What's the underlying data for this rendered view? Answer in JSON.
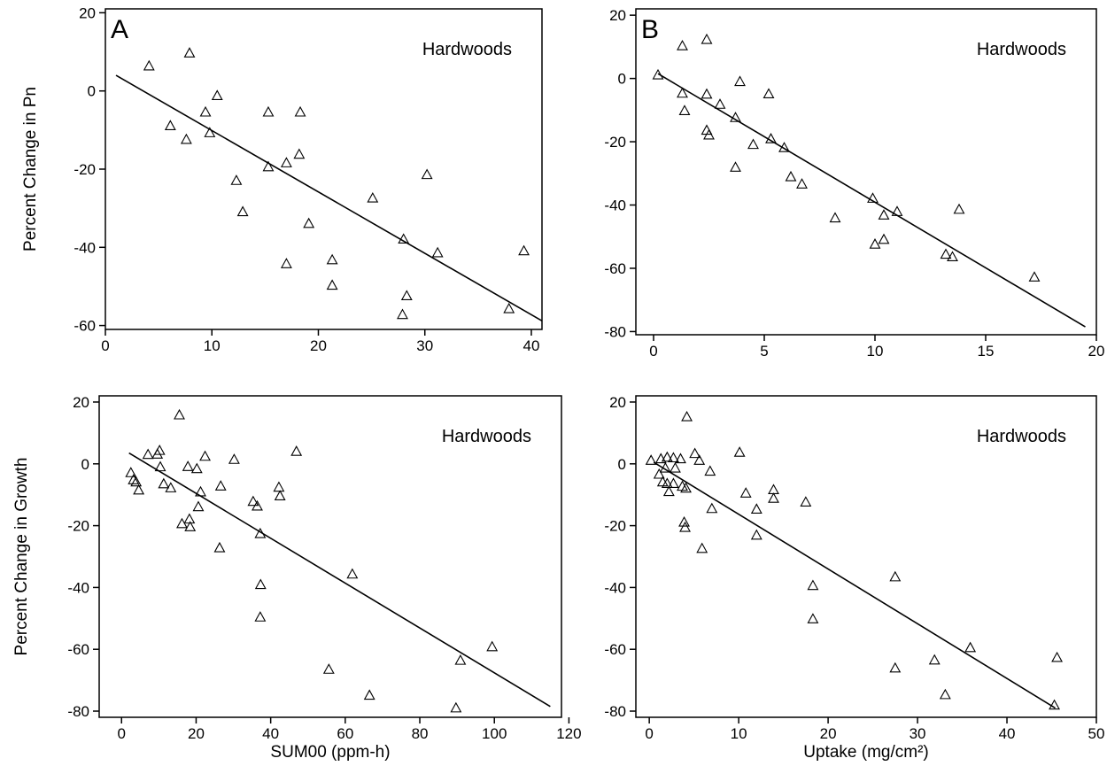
{
  "chart_data": [
    {
      "type": "scatter",
      "panel_label": "A",
      "annotation": "Hardwoods",
      "xlabel": "",
      "ylabel": "Percent Change in Pn",
      "xlim": [
        0,
        41
      ],
      "ylim": [
        -61,
        21
      ],
      "xticks": [
        0,
        10,
        20,
        30,
        40
      ],
      "yticks": [
        20,
        0,
        -20,
        -40,
        -60
      ],
      "marker": "triangle",
      "grid": false,
      "points": [
        [
          4.1,
          6.3
        ],
        [
          7.9,
          9.6
        ],
        [
          6.1,
          -9
        ],
        [
          7.6,
          -12.5
        ],
        [
          9.4,
          -5.5
        ],
        [
          10.5,
          -1.3
        ],
        [
          9.8,
          -10.8
        ],
        [
          12.3,
          -23
        ],
        [
          12.9,
          -31
        ],
        [
          15.3,
          -5.5
        ],
        [
          15.3,
          -19.5
        ],
        [
          17.0,
          -18.5
        ],
        [
          18.3,
          -5.5
        ],
        [
          18.2,
          -16.3
        ],
        [
          19.1,
          -34
        ],
        [
          17.0,
          -44.3
        ],
        [
          21.3,
          -43.3
        ],
        [
          21.3,
          -49.8
        ],
        [
          25.1,
          -27.5
        ],
        [
          28.0,
          -38
        ],
        [
          28.3,
          -52.5
        ],
        [
          27.9,
          -57.3
        ],
        [
          30.2,
          -21.5
        ],
        [
          31.2,
          -41.5
        ],
        [
          37.9,
          -55.8
        ],
        [
          39.3,
          -41
        ]
      ],
      "fit_line": [
        [
          1,
          4
        ],
        [
          41,
          -58.8
        ]
      ]
    },
    {
      "type": "scatter",
      "panel_label": "B",
      "annotation": "Hardwoods",
      "xlabel": "",
      "ylabel": "",
      "xlim": [
        -0.8,
        20
      ],
      "ylim": [
        -81,
        22
      ],
      "xticks": [
        0,
        5,
        10,
        15,
        20
      ],
      "yticks": [
        20,
        0,
        -20,
        -40,
        -60,
        -80
      ],
      "marker": "triangle",
      "grid": false,
      "points": [
        [
          0.2,
          1
        ],
        [
          1.3,
          10.2
        ],
        [
          2.4,
          12.2
        ],
        [
          1.3,
          -4.8
        ],
        [
          1.4,
          -10.3
        ],
        [
          2.4,
          -5.1
        ],
        [
          2.4,
          -16.5
        ],
        [
          2.5,
          -18
        ],
        [
          3.0,
          -8.3
        ],
        [
          3.7,
          -12.5
        ],
        [
          3.9,
          -1.1
        ],
        [
          3.7,
          -28.2
        ],
        [
          4.5,
          -21
        ],
        [
          5.2,
          -5
        ],
        [
          5.3,
          -19.2
        ],
        [
          5.9,
          -22
        ],
        [
          6.2,
          -31.2
        ],
        [
          6.7,
          -33.5
        ],
        [
          8.2,
          -44.2
        ],
        [
          9.9,
          -38
        ],
        [
          10.0,
          -52.5
        ],
        [
          10.4,
          -43.3
        ],
        [
          10.4,
          -51
        ],
        [
          11.0,
          -42.2
        ],
        [
          13.2,
          -55.7
        ],
        [
          13.5,
          -56.5
        ],
        [
          13.8,
          -41.5
        ],
        [
          17.2,
          -62.9
        ]
      ],
      "fit_line": [
        [
          0.2,
          1.5
        ],
        [
          19.5,
          -78.5
        ]
      ]
    },
    {
      "type": "scatter",
      "panel_label": "",
      "annotation": "Hardwoods",
      "xlabel": "SUM00 (ppm-h)",
      "ylabel": "Percent Change in Growth",
      "xlim": [
        -6,
        118
      ],
      "ylim": [
        -82,
        22
      ],
      "xticks": [
        0,
        20,
        40,
        60,
        80,
        100,
        120
      ],
      "yticks": [
        20,
        0,
        -20,
        -40,
        -60,
        -80
      ],
      "marker": "triangle",
      "grid": false,
      "points": [
        [
          2.5,
          -3
        ],
        [
          3.2,
          -5.3
        ],
        [
          3.9,
          -6
        ],
        [
          4.6,
          -8.6
        ],
        [
          7.1,
          2.9
        ],
        [
          9.6,
          3
        ],
        [
          10.2,
          4.2
        ],
        [
          10.4,
          -1.1
        ],
        [
          11.3,
          -6.6
        ],
        [
          13.2,
          -7.9
        ],
        [
          15.5,
          15.7
        ],
        [
          16.2,
          -19.5
        ],
        [
          17.8,
          -1
        ],
        [
          18.2,
          -18
        ],
        [
          18.4,
          -20.5
        ],
        [
          20.2,
          -1.7
        ],
        [
          20.6,
          -14
        ],
        [
          21.2,
          -9.2
        ],
        [
          22.4,
          2.3
        ],
        [
          26.3,
          -27.3
        ],
        [
          26.6,
          -7.3
        ],
        [
          30.2,
          1.3
        ],
        [
          35.3,
          -12.3
        ],
        [
          36.4,
          -13.8
        ],
        [
          37.2,
          -22.7
        ],
        [
          37.3,
          -39.2
        ],
        [
          37.2,
          -49.7
        ],
        [
          42.2,
          -7.7
        ],
        [
          42.5,
          -10.5
        ],
        [
          46.9,
          3.9
        ],
        [
          55.6,
          -66.6
        ],
        [
          61.9,
          -35.8
        ],
        [
          66.5,
          -75
        ],
        [
          89.7,
          -79.1
        ],
        [
          90.9,
          -63.7
        ],
        [
          99.4,
          -59.3
        ]
      ],
      "fit_line": [
        [
          2,
          3.5
        ],
        [
          115,
          -78.5
        ]
      ]
    },
    {
      "type": "scatter",
      "panel_label": "",
      "annotation": "Hardwoods",
      "xlabel": "Uptake (mg/cm²)",
      "ylabel": "",
      "xlim": [
        -1.5,
        50
      ],
      "ylim": [
        -82,
        22
      ],
      "xticks": [
        0,
        10,
        20,
        30,
        40,
        50
      ],
      "yticks": [
        20,
        0,
        -20,
        -40,
        -60,
        -80
      ],
      "marker": "triangle",
      "grid": false,
      "points": [
        [
          0.2,
          1
        ],
        [
          1.1,
          -3.5
        ],
        [
          1.5,
          -6
        ],
        [
          1.3,
          1.5
        ],
        [
          1.8,
          -1.5
        ],
        [
          2.0,
          2
        ],
        [
          2.0,
          -6.5
        ],
        [
          2.2,
          -9.1
        ],
        [
          2.7,
          1.8
        ],
        [
          2.7,
          -6.5
        ],
        [
          2.9,
          -1.5
        ],
        [
          3.5,
          1.5
        ],
        [
          3.7,
          -7.4
        ],
        [
          3.9,
          -19
        ],
        [
          4.0,
          -20.7
        ],
        [
          4.1,
          -8
        ],
        [
          4.2,
          15.1
        ],
        [
          5.1,
          3.2
        ],
        [
          5.6,
          1
        ],
        [
          5.9,
          -27.5
        ],
        [
          6.8,
          -2.5
        ],
        [
          7.0,
          -14.6
        ],
        [
          10.1,
          3.6
        ],
        [
          10.8,
          -9.6
        ],
        [
          12.0,
          -14.8
        ],
        [
          12.0,
          -23.2
        ],
        [
          13.9,
          -8.5
        ],
        [
          13.9,
          -11.3
        ],
        [
          17.5,
          -12.5
        ],
        [
          18.3,
          -39.5
        ],
        [
          18.3,
          -50.3
        ],
        [
          27.5,
          -36.7
        ],
        [
          27.5,
          -66.2
        ],
        [
          31.9,
          -63.6
        ],
        [
          33.1,
          -74.8
        ],
        [
          35.9,
          -59.6
        ],
        [
          45.3,
          -78.2
        ],
        [
          45.6,
          -62.8
        ]
      ],
      "fit_line": [
        [
          0.5,
          0.5
        ],
        [
          45.4,
          -79
        ]
      ]
    }
  ]
}
